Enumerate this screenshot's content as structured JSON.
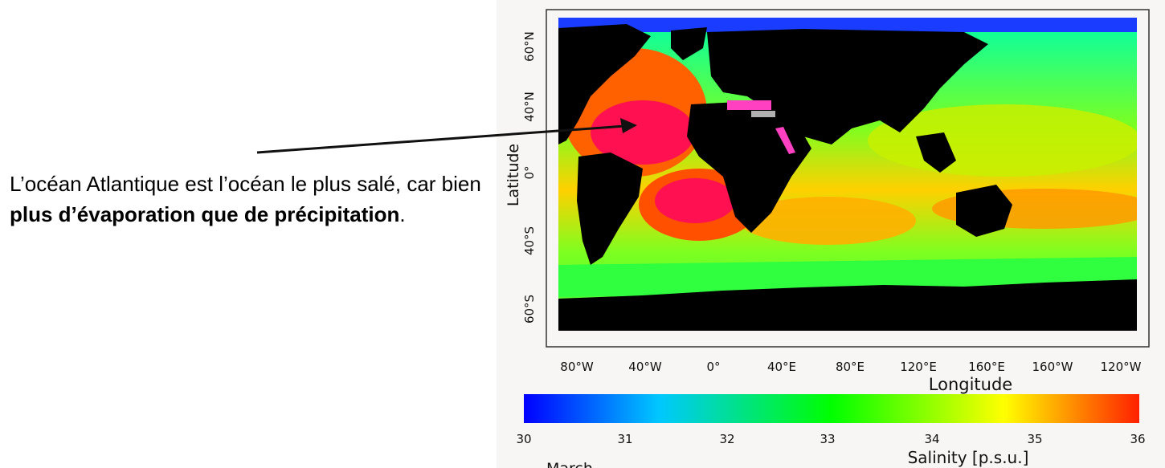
{
  "caption": {
    "text_plain_1": "L’océan Atlantique est l’océan le plus salé, car bien ",
    "text_bold": "plus d’évaporation que de précipitation",
    "text_plain_2": "."
  },
  "map": {
    "y_axis_label": "Latitude",
    "x_axis_label": "Longitude",
    "lat_ticks": [
      "60°N",
      "40°N",
      "0°",
      "40°S",
      "60°S"
    ],
    "lon_ticks": [
      "80°W",
      "40°W",
      "0°",
      "40°E",
      "80°E",
      "120°E",
      "160°E",
      "160°W",
      "120°W"
    ],
    "month_label": "March"
  },
  "colorbar": {
    "label": "Salinity [p.s.u.]",
    "ticks": [
      "30",
      "31",
      "32",
      "33",
      "34",
      "35",
      "36"
    ],
    "colors": [
      "#0000ff",
      "#00c8ff",
      "#00ff00",
      "#ffff00",
      "#ff2000"
    ]
  },
  "colors": {
    "land": "#000000",
    "sea_ice": "#1a3cff",
    "high_salinity": "#ff1050",
    "mid_salinity": "#ff8000",
    "low_salinity": "#30ff30"
  }
}
